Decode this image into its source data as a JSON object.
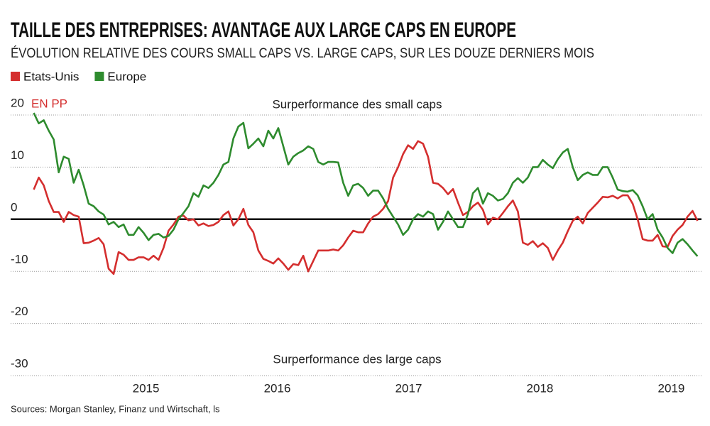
{
  "chart_data": {
    "type": "line",
    "title": "TAILLE DES ENTREPRISES: AVANTAGE AUX LARGE CAPS EN EUROPE",
    "subtitle": "ÉVOLUTION RELATIVE DES COURS SMALL CAPS VS. LARGE CAPS, SUR LES DOUZE DERNIERS MOIS",
    "y_unit": "EN PP",
    "annotations": [
      "Surperformance des small caps",
      "Surperformance des large caps"
    ],
    "source": "Sources: Morgan Stanley, Finanz und Wirtschaft, ls",
    "grid": true,
    "xlim": [
      2013.97,
      2019.23
    ],
    "xticks": [
      2015,
      2016,
      2017,
      2018,
      2019
    ],
    "ylim": [
      -31.5,
      23
    ],
    "yticks": [
      20,
      10,
      0,
      -10,
      -20,
      -30
    ],
    "x": [
      2014.146,
      2014.184,
      2014.222,
      2014.26,
      2014.298,
      2014.336,
      2014.374,
      2014.412,
      2014.45,
      2014.488,
      2014.526,
      2014.564,
      2014.602,
      2014.64,
      2014.678,
      2014.716,
      2014.754,
      2014.792,
      2014.83,
      2014.868,
      2014.906,
      2014.944,
      2014.982,
      2015.02,
      2015.058,
      2015.096,
      2015.134,
      2015.172,
      2015.21,
      2015.248,
      2015.286,
      2015.324,
      2015.362,
      2015.4,
      2015.438,
      2015.476,
      2015.514,
      2015.552,
      2015.59,
      2015.628,
      2015.666,
      2015.704,
      2015.742,
      2015.78,
      2015.818,
      2015.856,
      2015.894,
      2015.932,
      2015.97,
      2016.008,
      2016.046,
      2016.084,
      2016.122,
      2016.16,
      2016.198,
      2016.236,
      2016.274,
      2016.312,
      2016.35,
      2016.388,
      2016.426,
      2016.464,
      2016.502,
      2016.54,
      2016.578,
      2016.616,
      2016.654,
      2016.692,
      2016.73,
      2016.768,
      2016.806,
      2016.844,
      2016.882,
      2016.92,
      2016.958,
      2016.996,
      2017.034,
      2017.072,
      2017.11,
      2017.148,
      2017.186,
      2017.224,
      2017.262,
      2017.3,
      2017.338,
      2017.376,
      2017.414,
      2017.452,
      2017.49,
      2017.528,
      2017.566,
      2017.604,
      2017.642,
      2017.68,
      2017.718,
      2017.756,
      2017.794,
      2017.832,
      2017.87,
      2017.908,
      2017.946,
      2017.984,
      2018.022,
      2018.06,
      2018.098,
      2018.136,
      2018.174,
      2018.212,
      2018.25,
      2018.288,
      2018.326,
      2018.364,
      2018.402,
      2018.44,
      2018.478,
      2018.516,
      2018.554,
      2018.592,
      2018.63,
      2018.668,
      2018.706,
      2018.744,
      2018.782,
      2018.82,
      2018.858,
      2018.896,
      2018.934,
      2018.972,
      2019.01,
      2019.048,
      2019.086,
      2019.124,
      2019.162,
      2019.2
    ],
    "series": [
      {
        "name": "Etats-Unis",
        "color": "#d42e2e",
        "values": [
          5.7,
          8,
          6.5,
          3.5,
          1.4,
          1.4,
          -0.5,
          1.4,
          0.8,
          0.5,
          -4.6,
          -4.5,
          -4.1,
          -3.6,
          -4.8,
          -9.5,
          -10.5,
          -6.3,
          -6.8,
          -7.8,
          -7.8,
          -7.3,
          -7.3,
          -7.8,
          -7,
          -7.8,
          -5.5,
          -2.2,
          -1,
          0.5,
          0.7,
          -0.2,
          0,
          -1.2,
          -0.8,
          -1.3,
          -1.1,
          -0.5,
          0.8,
          1.5,
          -1.2,
          0,
          2,
          -1.1,
          -2.5,
          -6,
          -7.6,
          -8,
          -8.5,
          -7.5,
          -8.5,
          -9.7,
          -8.6,
          -8.8,
          -7,
          -10,
          -8,
          -6,
          -6,
          -6,
          -5.8,
          -6,
          -5,
          -3.5,
          -2.2,
          -2.5,
          -2.5,
          -0.8,
          0.5,
          1,
          2,
          3.5,
          8,
          10,
          12.5,
          14.2,
          13.5,
          15,
          14.5,
          12,
          7,
          6.8,
          6,
          4.8,
          5.8,
          3.2,
          0.8,
          1.4,
          2.5,
          3.2,
          1.8,
          -1,
          0.3,
          0,
          1.2,
          2.5,
          3.6,
          1.5,
          -4.5,
          -4.9,
          -4.2,
          -5.3,
          -4.6,
          -5.5,
          -7.8,
          -6,
          -4.5,
          -2.3,
          -0.3,
          0.5,
          -0.8,
          1.2,
          2.2,
          3.2,
          4.3,
          4.2,
          4.5,
          4,
          4.6,
          4.6,
          3,
          0,
          -3.8,
          -4.1,
          -4.1,
          -3,
          -5.2,
          -5.3,
          -3.2,
          -2,
          -1.1,
          0.5,
          1.6,
          -0.3
        ]
      },
      {
        "name": "Europe",
        "color": "#2e8b2e",
        "values": [
          20.4,
          18.4,
          19,
          17,
          15.3,
          9,
          12,
          11.6,
          7,
          9.5,
          6.5,
          3,
          2.5,
          1.5,
          0.9,
          -1,
          -0.5,
          -1.5,
          -1,
          -3,
          -3,
          -1.5,
          -2.6,
          -4,
          -3,
          -2.8,
          -3.5,
          -3.2,
          -2,
          0,
          1.2,
          2.5,
          5,
          4.3,
          6.5,
          6,
          7,
          8.5,
          10.5,
          11,
          15.5,
          17.8,
          18.5,
          13.6,
          14.5,
          15.5,
          14,
          17,
          15.5,
          17.5,
          14,
          10.5,
          12,
          12.7,
          13.2,
          14,
          13.5,
          11,
          10.5,
          11,
          11,
          10.9,
          7,
          4.5,
          6.5,
          6.8,
          6,
          4.5,
          5.5,
          5.5,
          4,
          2,
          0.5,
          -1,
          -3,
          -2,
          0,
          1,
          0.5,
          1.5,
          1,
          -2,
          -0.5,
          1.5,
          0,
          -1.5,
          -1.5,
          1,
          5,
          6,
          3,
          5,
          4.5,
          3.6,
          3.9,
          5,
          7,
          7.9,
          7,
          8,
          10,
          10,
          11.4,
          10.5,
          9.8,
          11.5,
          12.8,
          13.5,
          10,
          7.5,
          8.5,
          9,
          8.5,
          8.5,
          10,
          10,
          8,
          5.7,
          5.4,
          5.3,
          5.6,
          4.6,
          2.5,
          0,
          1,
          -2,
          -3.5,
          -5.5,
          -6.5,
          -4.5,
          -3.8,
          -4.8,
          -6,
          -7.1
        ]
      }
    ]
  }
}
